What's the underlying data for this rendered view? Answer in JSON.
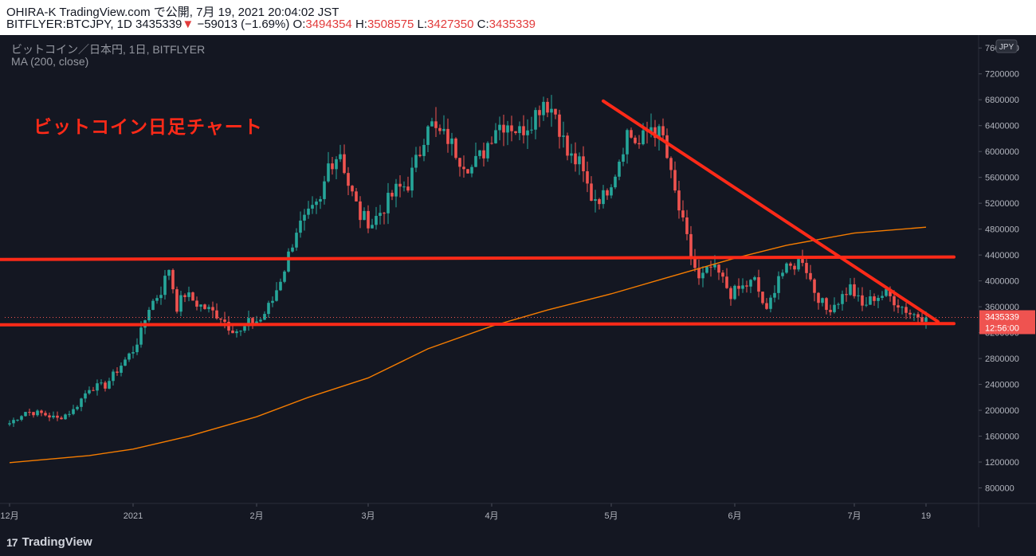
{
  "header": {
    "publisher_line": "OHIRA-K TradingView.com で公開, 7月 19, 2021 20:04:02 JST",
    "symbol_line_prefix": "BITFLYER:BTCJPY, 1D",
    "last_price": "3435339",
    "change_arrow": "▼",
    "change": "−59013 (−1.69%)",
    "o_label": "O:",
    "o_value": "3494354",
    "h_label": "H:",
    "h_value": "3508575",
    "l_label": "L:",
    "l_value": "3427350",
    "c_label": "C:",
    "c_value": "3435339"
  },
  "legend": {
    "symbol_title": "ビットコイン／日本円, 1日, BITFLYER",
    "ma_title": "MA (200, close)"
  },
  "annotation": "ビットコイン日足チャート",
  "footer": {
    "brand_mark": "17",
    "brand": "TradingView"
  },
  "chart_data": {
    "type": "candlestick",
    "currency_button": "JPY",
    "current_price_label": "3435339",
    "countdown_label": "12:56:00",
    "y_range": [
      560000,
      7800000
    ],
    "y_ticks": [
      7600000,
      7200000,
      6800000,
      6400000,
      6000000,
      5600000,
      5200000,
      4800000,
      4400000,
      4000000,
      3600000,
      3200000,
      2800000,
      2400000,
      2000000,
      1600000,
      1200000,
      800000
    ],
    "y_tick_labels": [
      "7600000",
      "7200000",
      "6800000",
      "6400000",
      "6000000",
      "5600000",
      "5200000",
      "4800000",
      "4400000",
      "4000000",
      "3600000",
      "3200000",
      "2800000",
      "2400000",
      "2000000",
      "1600000",
      "1200000",
      "800000"
    ],
    "x_ticks": [
      {
        "day": 0,
        "label": "12月"
      },
      {
        "day": 31,
        "label": "2021"
      },
      {
        "day": 62,
        "label": "2月"
      },
      {
        "day": 90,
        "label": "3月"
      },
      {
        "day": 121,
        "label": "4月"
      },
      {
        "day": 151,
        "label": "5月"
      },
      {
        "day": 182,
        "label": "6月"
      },
      {
        "day": 212,
        "label": "7月"
      },
      {
        "day": 230,
        "label": "19"
      }
    ],
    "price_path": [
      [
        0,
        1800000
      ],
      [
        4,
        1980000
      ],
      [
        8,
        1950000
      ],
      [
        12,
        1870000
      ],
      [
        16,
        2000000
      ],
      [
        20,
        2350000
      ],
      [
        24,
        2380000
      ],
      [
        28,
        2700000
      ],
      [
        31,
        2930000
      ],
      [
        33,
        3200000
      ],
      [
        35,
        3600000
      ],
      [
        38,
        3850000
      ],
      [
        40,
        4200000
      ],
      [
        42,
        3600000
      ],
      [
        44,
        3800000
      ],
      [
        47,
        3650000
      ],
      [
        50,
        3550000
      ],
      [
        53,
        3450000
      ],
      [
        55,
        3300000
      ],
      [
        58,
        3200000
      ],
      [
        60,
        3350000
      ],
      [
        63,
        3400000
      ],
      [
        66,
        3700000
      ],
      [
        69,
        4200000
      ],
      [
        72,
        4800000
      ],
      [
        75,
        5000000
      ],
      [
        78,
        5200000
      ],
      [
        80,
        5800000
      ],
      [
        83,
        6000000
      ],
      [
        85,
        5500000
      ],
      [
        88,
        5000000
      ],
      [
        91,
        4900000
      ],
      [
        94,
        5150000
      ],
      [
        97,
        5400000
      ],
      [
        100,
        5500000
      ],
      [
        103,
        6000000
      ],
      [
        105,
        6500000
      ],
      [
        107,
        6300000
      ],
      [
        110,
        6200000
      ],
      [
        113,
        5900000
      ],
      [
        116,
        5750000
      ],
      [
        119,
        6000000
      ],
      [
        122,
        6400000
      ],
      [
        125,
        6450000
      ],
      [
        128,
        6300000
      ],
      [
        131,
        6500000
      ],
      [
        134,
        6800000
      ],
      [
        137,
        6600000
      ],
      [
        140,
        5950000
      ],
      [
        143,
        5800000
      ],
      [
        146,
        5300000
      ],
      [
        149,
        5300000
      ],
      [
        152,
        5700000
      ],
      [
        155,
        6300000
      ],
      [
        158,
        6100000
      ],
      [
        161,
        6400000
      ],
      [
        164,
        6200000
      ],
      [
        166,
        5600000
      ],
      [
        168,
        5100000
      ],
      [
        171,
        4400000
      ],
      [
        173,
        4000000
      ],
      [
        176,
        4200000
      ],
      [
        178,
        4100000
      ],
      [
        181,
        3800000
      ],
      [
        184,
        3900000
      ],
      [
        187,
        4000000
      ],
      [
        190,
        3500000
      ],
      [
        193,
        4100000
      ],
      [
        196,
        4200000
      ],
      [
        199,
        4350000
      ],
      [
        202,
        3850000
      ],
      [
        205,
        3550000
      ],
      [
        208,
        3700000
      ],
      [
        211,
        3900000
      ],
      [
        214,
        3600000
      ],
      [
        217,
        3750000
      ],
      [
        220,
        3800000
      ],
      [
        223,
        3650000
      ],
      [
        226,
        3500000
      ],
      [
        229,
        3450000
      ],
      [
        230,
        3435339
      ]
    ],
    "ma200": [
      [
        0,
        1190000
      ],
      [
        20,
        1300000
      ],
      [
        31,
        1400000
      ],
      [
        45,
        1600000
      ],
      [
        62,
        1900000
      ],
      [
        75,
        2200000
      ],
      [
        90,
        2500000
      ],
      [
        105,
        2950000
      ],
      [
        121,
        3300000
      ],
      [
        135,
        3550000
      ],
      [
        151,
        3800000
      ],
      [
        165,
        4050000
      ],
      [
        182,
        4350000
      ],
      [
        195,
        4550000
      ],
      [
        212,
        4740000
      ],
      [
        230,
        4830000
      ]
    ],
    "drawings": {
      "resistance_line": {
        "x1": -9,
        "y1": 4330000,
        "x2": 237,
        "y2": 4370000
      },
      "support_line": {
        "x1": -8,
        "y1": 3320000,
        "x2": 237,
        "y2": 3340000
      },
      "descending_trendline": {
        "x1": 149,
        "y1": 6780000,
        "x2": 233,
        "y2": 3370000
      }
    },
    "colors": {
      "bull": "#26a69a",
      "bear": "#ef5350",
      "ma": "#f57c00",
      "drawing": "#ff2a18",
      "background": "#141722",
      "axis_text": "#b2b5be"
    }
  }
}
